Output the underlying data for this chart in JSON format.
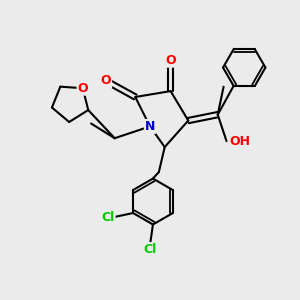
{
  "background_color": "#ebebeb",
  "bond_color": "#000000",
  "bond_width": 1.5,
  "atom_colors": {
    "O": "#ff0000",
    "N": "#0000cc",
    "Cl": "#00cc00",
    "C": "#000000",
    "H": "#000000"
  },
  "font_size": 9,
  "figsize": [
    3.0,
    3.0
  ],
  "dpi": 100
}
